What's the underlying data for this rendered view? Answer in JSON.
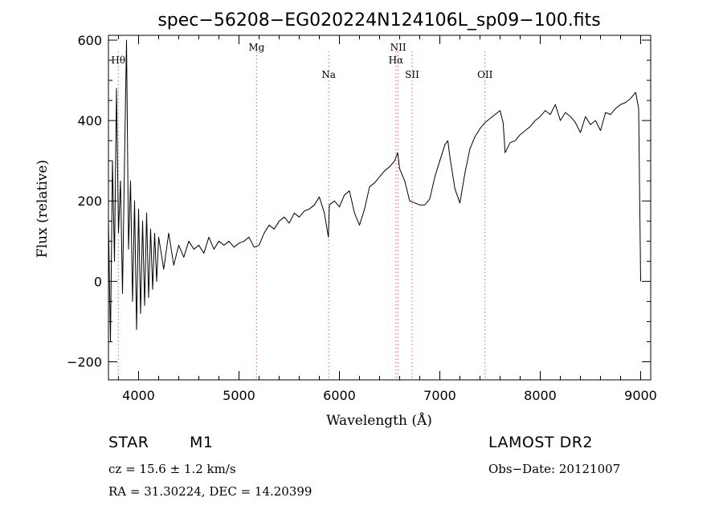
{
  "chart_data": {
    "type": "line",
    "title": "spec−56208−EG020224N124106L_sp09−100.fits",
    "xlabel": "Wavelength (Å)",
    "ylabel": "Flux (relative)",
    "xlim": [
      3700,
      9100
    ],
    "ylim": [
      -245,
      612
    ],
    "x_ticks": [
      4000,
      5000,
      6000,
      7000,
      8000,
      9000
    ],
    "x_tick_labels": [
      "4000",
      "5000",
      "6000",
      "7000",
      "8000",
      "9000"
    ],
    "y_ticks": [
      -200,
      0,
      200,
      400,
      600
    ],
    "y_tick_labels": [
      "−200",
      "0",
      "200",
      "400",
      "600"
    ],
    "grid": false,
    "series": [
      {
        "color": "#000000",
        "x": [
          3700,
          3720,
          3740,
          3760,
          3780,
          3800,
          3820,
          3840,
          3860,
          3880,
          3900,
          3920,
          3940,
          3960,
          3980,
          4000,
          4020,
          4040,
          4060,
          4080,
          4100,
          4120,
          4140,
          4160,
          4180,
          4200,
          4250,
          4300,
          4350,
          4400,
          4450,
          4500,
          4550,
          4600,
          4650,
          4700,
          4750,
          4800,
          4850,
          4900,
          4950,
          5000,
          5050,
          5100,
          5150,
          5200,
          5250,
          5300,
          5350,
          5400,
          5450,
          5500,
          5550,
          5600,
          5650,
          5700,
          5750,
          5800,
          5850,
          5890,
          5900,
          5950,
          6000,
          6050,
          6100,
          6150,
          6200,
          6250,
          6300,
          6350,
          6400,
          6450,
          6500,
          6550,
          6580,
          6600,
          6650,
          6700,
          6750,
          6800,
          6850,
          6900,
          6950,
          7000,
          7050,
          7080,
          7100,
          7150,
          7200,
          7250,
          7300,
          7350,
          7400,
          7450,
          7500,
          7550,
          7600,
          7630,
          7650,
          7700,
          7750,
          7800,
          7850,
          7900,
          7950,
          8000,
          8050,
          8100,
          8150,
          8200,
          8250,
          8300,
          8350,
          8400,
          8450,
          8500,
          8550,
          8600,
          8650,
          8700,
          8750,
          8800,
          8850,
          8900,
          8950,
          8980,
          9000
        ],
        "y": [
          150,
          -150,
          300,
          50,
          480,
          120,
          250,
          -30,
          300,
          600,
          80,
          250,
          -50,
          200,
          -120,
          180,
          -80,
          150,
          -60,
          170,
          -40,
          130,
          -20,
          120,
          0,
          110,
          30,
          120,
          40,
          90,
          60,
          100,
          80,
          90,
          70,
          110,
          80,
          100,
          90,
          100,
          85,
          95,
          100,
          110,
          85,
          90,
          120,
          140,
          130,
          150,
          160,
          145,
          170,
          160,
          175,
          180,
          190,
          210,
          170,
          110,
          190,
          200,
          185,
          215,
          225,
          170,
          140,
          180,
          235,
          245,
          260,
          275,
          285,
          300,
          320,
          280,
          250,
          200,
          195,
          190,
          190,
          205,
          260,
          300,
          340,
          350,
          310,
          230,
          195,
          270,
          330,
          360,
          380,
          395,
          405,
          415,
          425,
          395,
          320,
          345,
          350,
          365,
          375,
          385,
          400,
          410,
          425,
          415,
          440,
          400,
          420,
          410,
          395,
          370,
          410,
          390,
          400,
          375,
          420,
          415,
          430,
          440,
          445,
          455,
          470,
          430,
          0
        ]
      }
    ],
    "lines": [
      {
        "label": "Hθ",
        "x": 3798
      },
      {
        "label": "Mg",
        "x": 5175
      },
      {
        "label": "Na",
        "x": 5893
      },
      {
        "label": "NII",
        "x": 6585
      },
      {
        "label": "Hα",
        "x": 6563
      },
      {
        "label": "SII",
        "x": 6724
      },
      {
        "label": "OII",
        "x": 7450
      }
    ],
    "line_color": "#e06060"
  },
  "info": {
    "class": "STAR",
    "subclass": "M1",
    "survey": "LAMOST DR2",
    "cz": "cz = 15.6 ± 1.2 km/s",
    "obs_date": "Obs−Date: 20121007",
    "radec": "RA =  31.30224, DEC =  14.20399"
  }
}
